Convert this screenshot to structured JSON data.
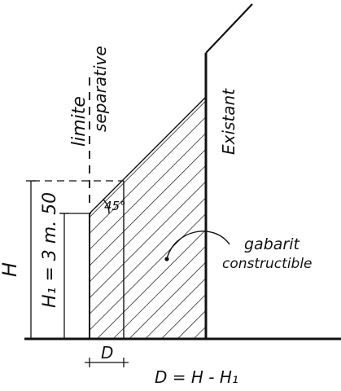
{
  "labels": {
    "limite": "limite",
    "separative": "separative",
    "existant": "Existant",
    "angle": "45°",
    "h_total": "H",
    "h1": "H₁ = 3 m. 50",
    "gabarit": "gabarit",
    "constructible": "constructible",
    "d": "D",
    "formula": "D = H - H₁"
  },
  "colors": {
    "ink": "#111111",
    "background": "#ffffff"
  }
}
